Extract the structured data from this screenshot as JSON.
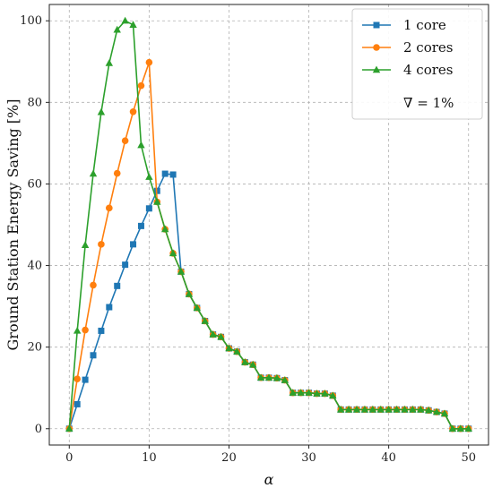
{
  "chart_data": {
    "type": "line",
    "title": "",
    "xlabel": "α",
    "ylabel": "Ground Station Energy Saving [%]",
    "xlim": [
      -2.5,
      52.5
    ],
    "ylim": [
      -4,
      104
    ],
    "xticks": [
      0,
      10,
      20,
      30,
      40,
      50
    ],
    "yticks": [
      0,
      20,
      40,
      60,
      80,
      100
    ],
    "grid": true,
    "legend_position": "top-right",
    "legend_note": "∇ = 1%",
    "x": [
      0,
      1,
      2,
      3,
      4,
      5,
      6,
      7,
      8,
      9,
      10,
      11,
      12,
      13,
      14,
      15,
      16,
      17,
      18,
      19,
      20,
      21,
      22,
      23,
      24,
      25,
      26,
      27,
      28,
      29,
      30,
      31,
      32,
      33,
      34,
      35,
      36,
      37,
      38,
      39,
      40,
      41,
      42,
      43,
      44,
      45,
      46,
      47,
      48,
      49,
      50
    ],
    "series": [
      {
        "name": "1 core",
        "color": "#1f77b4",
        "marker": "square",
        "values": [
          0,
          6,
          12,
          18,
          24,
          29.8,
          35,
          40.2,
          45.2,
          49.7,
          54,
          58.3,
          62.5,
          62.3,
          38.5,
          33,
          29.6,
          26.4,
          23.1,
          22.5,
          19.7,
          18.9,
          16.3,
          15.7,
          12.5,
          12.5,
          12.4,
          11.9,
          8.8,
          8.8,
          8.8,
          8.6,
          8.6,
          8.1,
          4.7,
          4.7,
          4.7,
          4.7,
          4.7,
          4.7,
          4.7,
          4.7,
          4.7,
          4.7,
          4.7,
          4.5,
          4.1,
          3.7,
          0,
          0,
          0
        ]
      },
      {
        "name": "2 cores",
        "color": "#ff7f0e",
        "marker": "circle",
        "values": [
          0,
          12.2,
          24.2,
          35.2,
          45.2,
          54.1,
          62.6,
          70.6,
          77.7,
          84.1,
          89.8,
          55.6,
          48.9,
          43,
          38.5,
          33,
          29.6,
          26.4,
          23.1,
          22.5,
          19.7,
          18.9,
          16.3,
          15.7,
          12.5,
          12.5,
          12.4,
          11.9,
          8.8,
          8.8,
          8.8,
          8.6,
          8.6,
          8.1,
          4.7,
          4.7,
          4.7,
          4.7,
          4.7,
          4.7,
          4.7,
          4.7,
          4.7,
          4.7,
          4.7,
          4.5,
          4.1,
          3.7,
          0,
          0,
          0
        ]
      },
      {
        "name": "4 cores",
        "color": "#2ca02c",
        "marker": "triangle",
        "values": [
          0,
          24,
          45,
          62.5,
          77.6,
          89.6,
          97.8,
          100,
          99,
          69.5,
          61.7,
          55.6,
          48.9,
          43,
          38.5,
          33,
          29.6,
          26.4,
          23.1,
          22.5,
          19.7,
          18.9,
          16.3,
          15.7,
          12.5,
          12.5,
          12.4,
          11.9,
          8.8,
          8.8,
          8.8,
          8.6,
          8.6,
          8.1,
          4.7,
          4.7,
          4.7,
          4.7,
          4.7,
          4.7,
          4.7,
          4.7,
          4.7,
          4.7,
          4.7,
          4.5,
          4.1,
          3.7,
          0,
          0,
          0
        ]
      }
    ]
  }
}
